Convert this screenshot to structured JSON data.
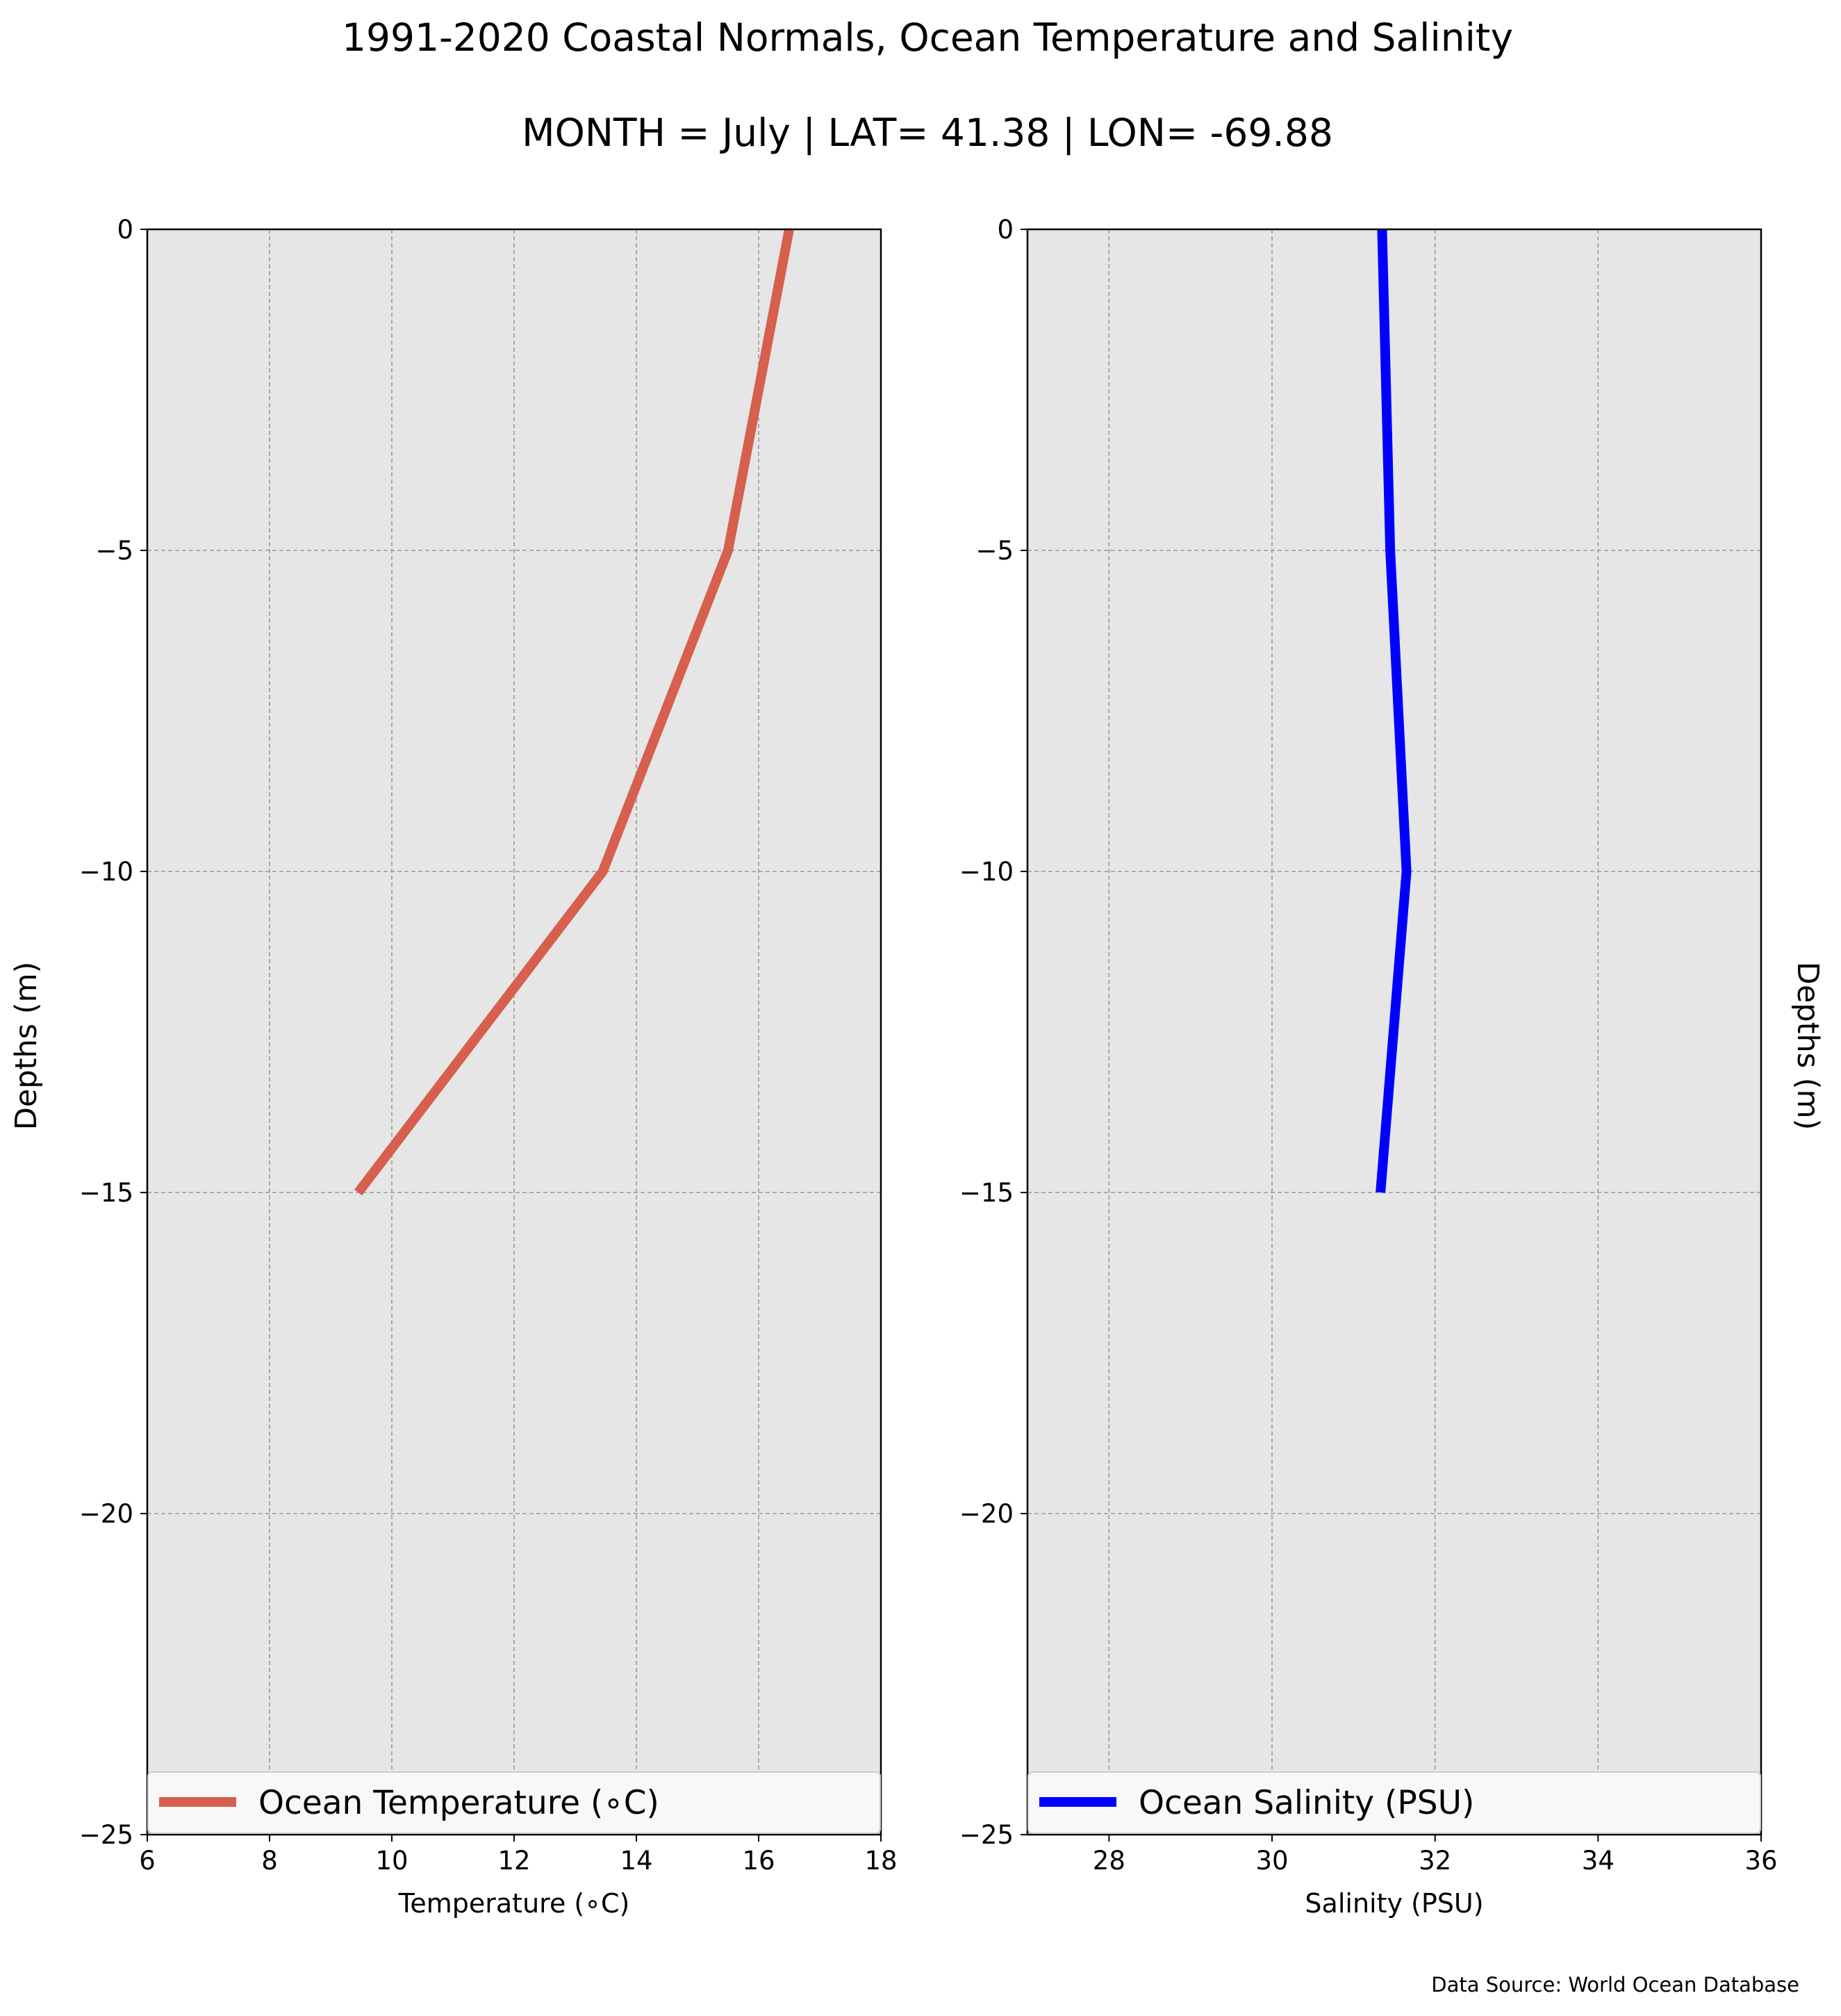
{
  "title": "1991-2020 Coastal Normals, Ocean Temperature and Salinity",
  "subtitle": "MONTH = July | LAT= 41.38 | LON= -69.88",
  "source": "Data Source: World Ocean Database",
  "colors": {
    "axes_background": "#e6e6e6",
    "grid": "#999999",
    "temperature_line": "#d65f4e",
    "salinity_line": "#0000ff",
    "legend_background": "#f8f8f8"
  },
  "chart_data": [
    {
      "type": "line",
      "xlabel": "Temperature (∘C)",
      "ylabel": "Depths (m)",
      "xlim": [
        6,
        18
      ],
      "ylim": [
        -25,
        0
      ],
      "xticks": [
        6,
        8,
        10,
        12,
        14,
        16,
        18
      ],
      "yticks": [
        0,
        -5,
        -10,
        -15,
        -20,
        -25
      ],
      "ytick_labels": [
        "0",
        "−5",
        "−10",
        "−15",
        "−20",
        "−25"
      ],
      "grid": true,
      "legend": "lower center",
      "series": [
        {
          "name": "Ocean Temperature (∘C)",
          "color": "#d65f4e",
          "x": [
            16.5,
            15.5,
            13.45,
            9.45
          ],
          "y": [
            0,
            -5,
            -10,
            -15
          ]
        }
      ]
    },
    {
      "type": "line",
      "xlabel": "Salinity (PSU)",
      "ylabel": "Depths (m)",
      "xlim": [
        27,
        36
      ],
      "ylim": [
        -25,
        0
      ],
      "xticks": [
        28,
        30,
        32,
        34,
        36
      ],
      "yticks": [
        0,
        -5,
        -10,
        -15,
        -20,
        -25
      ],
      "ytick_labels": [
        "0",
        "−5",
        "−10",
        "−15",
        "−20",
        "−25"
      ],
      "grid": true,
      "legend": "lower center",
      "series": [
        {
          "name": "Ocean Salinity (PSU)",
          "color": "#0000ff",
          "x": [
            31.35,
            31.45,
            31.65,
            31.33
          ],
          "y": [
            0,
            -5,
            -10,
            -15
          ]
        }
      ]
    }
  ]
}
